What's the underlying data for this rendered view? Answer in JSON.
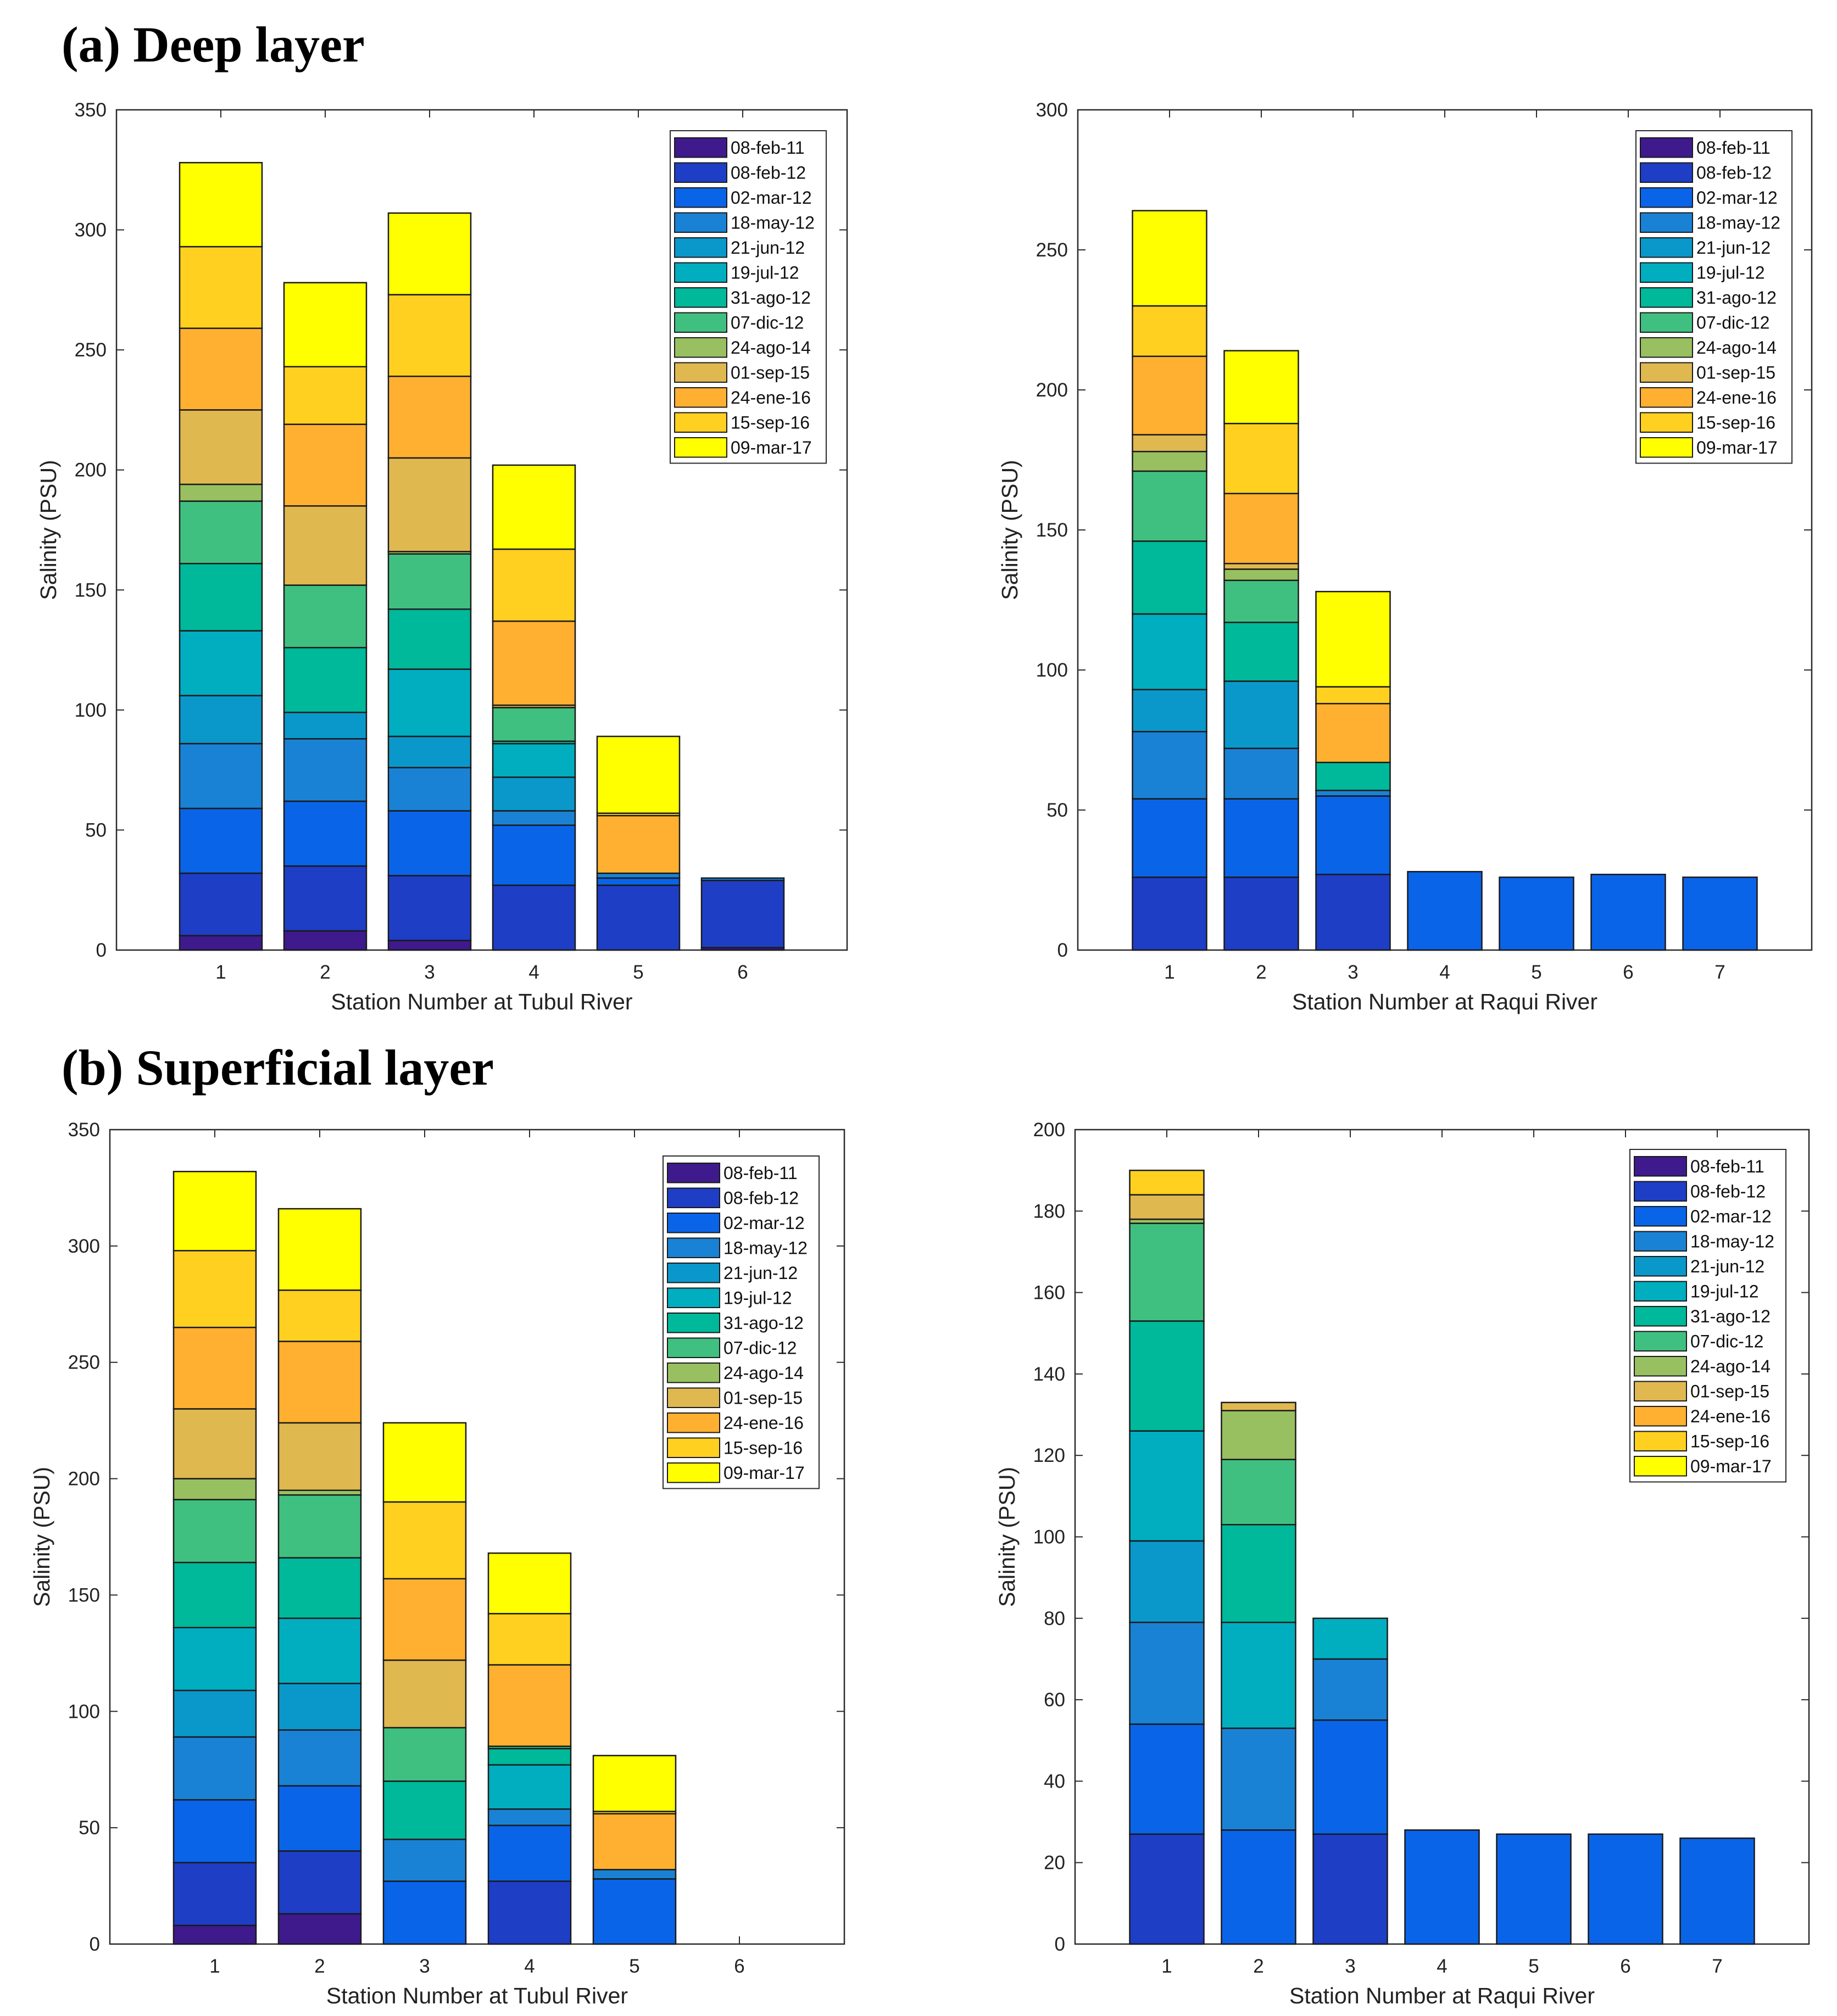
{
  "headings": [
    {
      "id": "a",
      "text": "(a) Deep layer"
    },
    {
      "id": "b",
      "text": "(b) Superficial layer"
    }
  ],
  "colors": [
    "#3e1a8c",
    "#1e3ec6",
    "#0a64e8",
    "#1a82d4",
    "#0a98ca",
    "#00aec0",
    "#00b89a",
    "#40c080",
    "#98c060",
    "#e0b850",
    "#ffb030",
    "#ffd020",
    "#ffff00"
  ],
  "chart_data": [
    {
      "panel": "a-left",
      "type": "bar",
      "stacked": true,
      "xlabel": "Station Number at Tubul River",
      "ylabel": "Salinity (PSU)",
      "ylim": [
        0,
        350
      ],
      "yticks": [
        0,
        50,
        100,
        150,
        200,
        250,
        300,
        350
      ],
      "categories": [
        "1",
        "2",
        "3",
        "4",
        "5",
        "6"
      ],
      "legend_position": "top-right",
      "series": [
        {
          "name": "08-feb-11",
          "values": [
            6,
            8,
            4,
            0,
            0,
            1
          ]
        },
        {
          "name": "08-feb-12",
          "values": [
            26,
            27,
            27,
            27,
            27,
            28
          ]
        },
        {
          "name": "02-mar-12",
          "values": [
            27,
            27,
            27,
            25,
            3,
            0
          ]
        },
        {
          "name": "18-may-12",
          "values": [
            27,
            26,
            18,
            6,
            2,
            1
          ]
        },
        {
          "name": "21-jun-12",
          "values": [
            20,
            11,
            13,
            14,
            0,
            0
          ]
        },
        {
          "name": "19-jul-12",
          "values": [
            27,
            0,
            28,
            14,
            0,
            0
          ]
        },
        {
          "name": "31-ago-12",
          "values": [
            28,
            27,
            25,
            1,
            0,
            0
          ]
        },
        {
          "name": "07-dic-12",
          "values": [
            26,
            26,
            23,
            14,
            0,
            0
          ]
        },
        {
          "name": "24-ago-14",
          "values": [
            7,
            0,
            1,
            0,
            0,
            0
          ]
        },
        {
          "name": "01-sep-15",
          "values": [
            31,
            33,
            39,
            1,
            0,
            0
          ]
        },
        {
          "name": "24-ene-16",
          "values": [
            34,
            34,
            34,
            35,
            24,
            0
          ]
        },
        {
          "name": "15-sep-16",
          "values": [
            34,
            24,
            34,
            30,
            1,
            0
          ]
        },
        {
          "name": "09-mar-17",
          "values": [
            35,
            35,
            34,
            35,
            32,
            0
          ]
        }
      ]
    },
    {
      "panel": "a-right",
      "type": "bar",
      "stacked": true,
      "xlabel": "Station Number at Raqui River",
      "ylabel": "Salinity (PSU)",
      "ylim": [
        0,
        300
      ],
      "yticks": [
        0,
        50,
        100,
        150,
        200,
        250,
        300
      ],
      "categories": [
        "1",
        "2",
        "3",
        "4",
        "5",
        "6",
        "7"
      ],
      "legend_position": "top-right",
      "series": [
        {
          "name": "08-feb-11",
          "values": [
            0,
            0,
            0,
            0,
            0,
            0,
            0
          ]
        },
        {
          "name": "08-feb-12",
          "values": [
            26,
            26,
            27,
            0,
            0,
            0,
            0
          ]
        },
        {
          "name": "02-mar-12",
          "values": [
            28,
            28,
            28,
            28,
            26,
            27,
            26
          ]
        },
        {
          "name": "18-may-12",
          "values": [
            24,
            18,
            2,
            0,
            0,
            0,
            0
          ]
        },
        {
          "name": "21-jun-12",
          "values": [
            15,
            24,
            0,
            0,
            0,
            0,
            0
          ]
        },
        {
          "name": "19-jul-12",
          "values": [
            27,
            0,
            0,
            0,
            0,
            0,
            0
          ]
        },
        {
          "name": "31-ago-12",
          "values": [
            26,
            21,
            10,
            0,
            0,
            0,
            0
          ]
        },
        {
          "name": "07-dic-12",
          "values": [
            25,
            15,
            0,
            0,
            0,
            0,
            0
          ]
        },
        {
          "name": "24-ago-14",
          "values": [
            7,
            4,
            0,
            0,
            0,
            0,
            0
          ]
        },
        {
          "name": "01-sep-15",
          "values": [
            6,
            2,
            0,
            0,
            0,
            0,
            0
          ]
        },
        {
          "name": "24-ene-16",
          "values": [
            28,
            25,
            21,
            0,
            0,
            0,
            0
          ]
        },
        {
          "name": "15-sep-16",
          "values": [
            18,
            25,
            6,
            0,
            0,
            0,
            0
          ]
        },
        {
          "name": "09-mar-17",
          "values": [
            34,
            26,
            34,
            0,
            0,
            0,
            0
          ]
        }
      ]
    },
    {
      "panel": "b-left",
      "type": "bar",
      "stacked": true,
      "xlabel": "Station Number at Tubul River",
      "ylabel": "Salinity (PSU)",
      "ylim": [
        0,
        350
      ],
      "yticks": [
        0,
        50,
        100,
        150,
        200,
        250,
        300,
        350
      ],
      "categories": [
        "1",
        "2",
        "3",
        "4",
        "5",
        "6"
      ],
      "legend_position": "top-right",
      "series": [
        {
          "name": "08-feb-11",
          "values": [
            8,
            13,
            0,
            0,
            0,
            0
          ]
        },
        {
          "name": "08-feb-12",
          "values": [
            27,
            27,
            0,
            27,
            0,
            0
          ]
        },
        {
          "name": "02-mar-12",
          "values": [
            27,
            28,
            27,
            24,
            28,
            0
          ]
        },
        {
          "name": "18-may-12",
          "values": [
            27,
            24,
            18,
            7,
            4,
            0
          ]
        },
        {
          "name": "21-jun-12",
          "values": [
            20,
            20,
            0,
            0,
            0,
            0
          ]
        },
        {
          "name": "19-jul-12",
          "values": [
            27,
            28,
            0,
            19,
            0,
            0
          ]
        },
        {
          "name": "31-ago-12",
          "values": [
            28,
            26,
            25,
            7,
            0,
            0
          ]
        },
        {
          "name": "07-dic-12",
          "values": [
            27,
            27,
            23,
            1,
            0,
            0
          ]
        },
        {
          "name": "24-ago-14",
          "values": [
            9,
            2,
            0,
            0,
            0,
            0
          ]
        },
        {
          "name": "01-sep-15",
          "values": [
            30,
            29,
            29,
            0,
            0,
            0
          ]
        },
        {
          "name": "24-ene-16",
          "values": [
            35,
            35,
            35,
            35,
            24,
            0
          ]
        },
        {
          "name": "15-sep-16",
          "values": [
            33,
            22,
            33,
            22,
            1,
            0
          ]
        },
        {
          "name": "09-mar-17",
          "values": [
            34,
            35,
            34,
            26,
            24,
            0
          ]
        }
      ]
    },
    {
      "panel": "b-right",
      "type": "bar",
      "stacked": true,
      "xlabel": "Station Number at Raqui River",
      "ylabel": "Salinity (PSU)",
      "ylim": [
        0,
        200
      ],
      "yticks": [
        0,
        20,
        40,
        60,
        80,
        100,
        120,
        140,
        160,
        180,
        200
      ],
      "categories": [
        "1",
        "2",
        "3",
        "4",
        "5",
        "6",
        "7"
      ],
      "legend_position": "top-right",
      "series": [
        {
          "name": "08-feb-11",
          "values": [
            0,
            0,
            0,
            0,
            0,
            0,
            0
          ]
        },
        {
          "name": "08-feb-12",
          "values": [
            27,
            0,
            27,
            0,
            0,
            0,
            0
          ]
        },
        {
          "name": "02-mar-12",
          "values": [
            27,
            28,
            28,
            28,
            27,
            27,
            26
          ]
        },
        {
          "name": "18-may-12",
          "values": [
            25,
            25,
            15,
            0,
            0,
            0,
            0
          ]
        },
        {
          "name": "21-jun-12",
          "values": [
            20,
            0,
            0,
            0,
            0,
            0,
            0
          ]
        },
        {
          "name": "19-jul-12",
          "values": [
            27,
            26,
            10,
            0,
            0,
            0,
            0
          ]
        },
        {
          "name": "31-ago-12",
          "values": [
            27,
            24,
            0,
            0,
            0,
            0,
            0
          ]
        },
        {
          "name": "07-dic-12",
          "values": [
            24,
            16,
            0,
            0,
            0,
            0,
            0
          ]
        },
        {
          "name": "24-ago-14",
          "values": [
            1,
            12,
            0,
            0,
            0,
            0,
            0
          ]
        },
        {
          "name": "01-sep-15",
          "values": [
            6,
            2,
            0,
            0,
            0,
            0,
            0
          ]
        },
        {
          "name": "24-ene-16",
          "values": [
            0,
            0,
            0,
            0,
            0,
            0,
            0
          ]
        },
        {
          "name": "15-sep-16",
          "values": [
            6,
            0,
            0,
            0,
            0,
            0,
            0
          ]
        },
        {
          "name": "09-mar-17",
          "values": [
            0,
            0,
            0,
            0,
            0,
            0,
            0
          ]
        }
      ]
    }
  ]
}
